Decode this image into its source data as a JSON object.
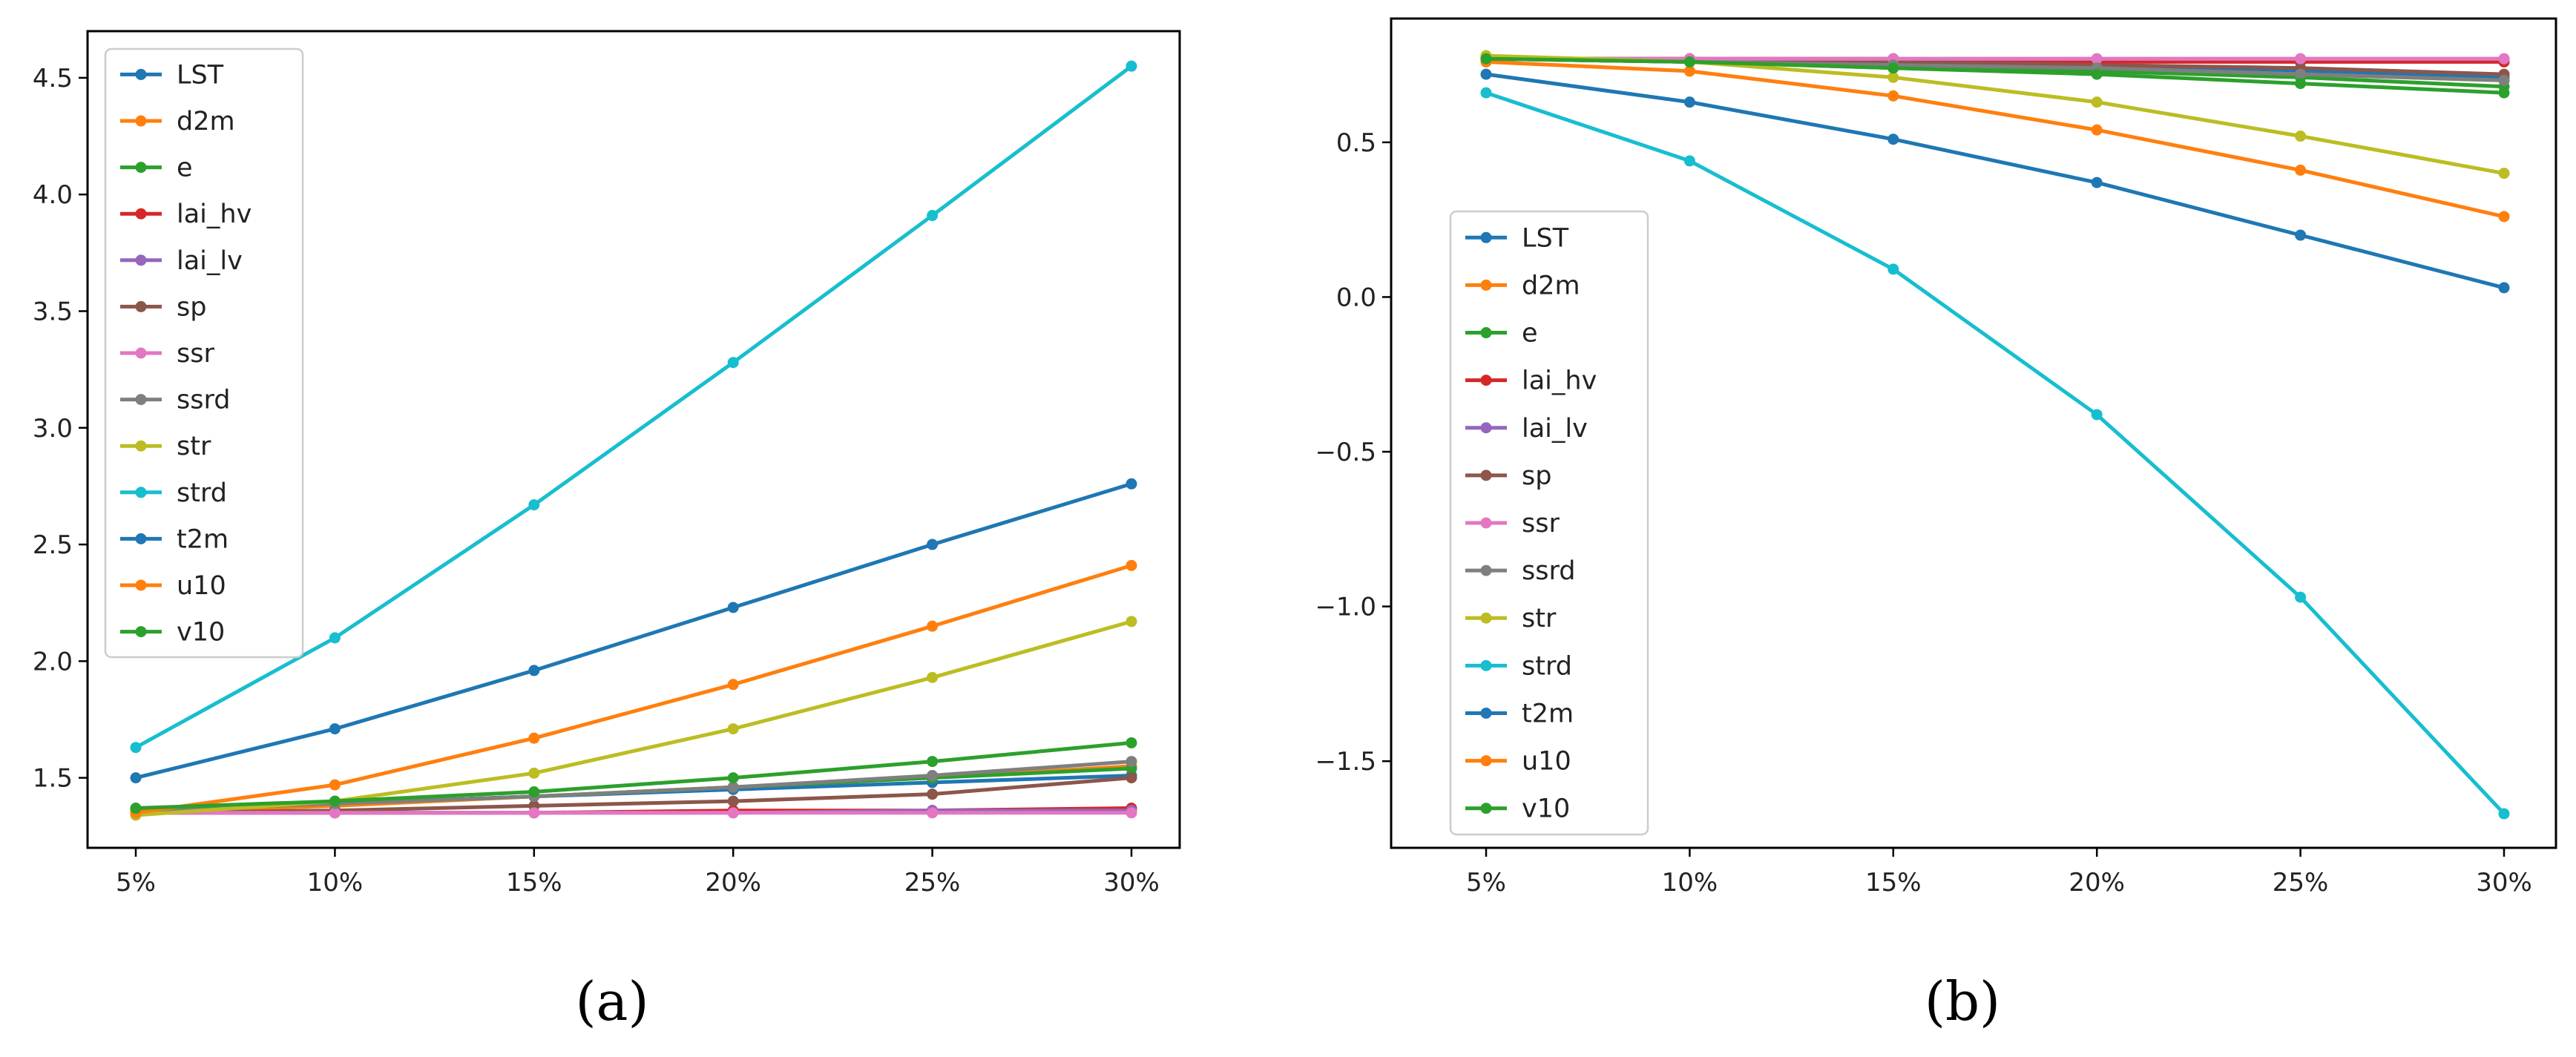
{
  "chart_data": [
    {
      "type": "line",
      "panel_label": "(a)",
      "title": "",
      "xlabel": "",
      "ylabel": "",
      "categories": [
        "5%",
        "10%",
        "15%",
        "20%",
        "25%",
        "30%"
      ],
      "ylim": [
        1.2,
        4.7
      ],
      "yticks": [
        1.5,
        2.0,
        2.5,
        3.0,
        3.5,
        4.0,
        4.5
      ],
      "ytick_labels": [
        "1.5",
        "2.0",
        "2.5",
        "3.0",
        "3.5",
        "4.0",
        "4.5"
      ],
      "legend_position": "upper-left",
      "series": [
        {
          "name": "LST",
          "color": "#1f77b4",
          "values": [
            1.36,
            1.39,
            1.42,
            1.45,
            1.48,
            1.51
          ]
        },
        {
          "name": "d2m",
          "color": "#ff7f0e",
          "values": [
            1.35,
            1.38,
            1.42,
            1.46,
            1.5,
            1.55
          ]
        },
        {
          "name": "e",
          "color": "#2ca02c",
          "values": [
            1.36,
            1.39,
            1.42,
            1.46,
            1.5,
            1.54
          ]
        },
        {
          "name": "lai_hv",
          "color": "#d62728",
          "values": [
            1.35,
            1.35,
            1.35,
            1.36,
            1.36,
            1.37
          ]
        },
        {
          "name": "lai_lv",
          "color": "#9467bd",
          "values": [
            1.35,
            1.35,
            1.35,
            1.35,
            1.36,
            1.36
          ]
        },
        {
          "name": "sp",
          "color": "#8c564b",
          "values": [
            1.35,
            1.36,
            1.38,
            1.4,
            1.43,
            1.5
          ]
        },
        {
          "name": "ssr",
          "color": "#e377c2",
          "values": [
            1.35,
            1.35,
            1.35,
            1.35,
            1.35,
            1.35
          ]
        },
        {
          "name": "ssrd",
          "color": "#7f7f7f",
          "values": [
            1.36,
            1.39,
            1.42,
            1.46,
            1.51,
            1.57
          ]
        },
        {
          "name": "str",
          "color": "#bcbd22",
          "values": [
            1.34,
            1.4,
            1.52,
            1.71,
            1.93,
            2.17
          ]
        },
        {
          "name": "strd",
          "color": "#17becf",
          "values": [
            1.63,
            2.1,
            2.67,
            3.28,
            3.91,
            4.55
          ]
        },
        {
          "name": "t2m",
          "color": "#1f77b4",
          "values": [
            1.5,
            1.71,
            1.96,
            2.23,
            2.5,
            2.76
          ]
        },
        {
          "name": "u10",
          "color": "#ff7f0e",
          "values": [
            1.35,
            1.47,
            1.67,
            1.9,
            2.15,
            2.41
          ]
        },
        {
          "name": "v10",
          "color": "#2ca02c",
          "values": [
            1.37,
            1.4,
            1.44,
            1.5,
            1.57,
            1.65
          ]
        }
      ]
    },
    {
      "type": "line",
      "panel_label": "(b)",
      "title": "",
      "xlabel": "",
      "ylabel": "",
      "categories": [
        "5%",
        "10%",
        "15%",
        "20%",
        "25%",
        "30%"
      ],
      "ylim": [
        -1.78,
        0.9
      ],
      "yticks": [
        -1.5,
        -1.0,
        -0.5,
        0.0,
        0.5
      ],
      "ytick_labels": [
        "−1.5",
        "−1.0",
        "−0.5",
        "0.0",
        "0.5"
      ],
      "legend_position": "center-left",
      "series": [
        {
          "name": "LST",
          "color": "#1f77b4",
          "values": [
            0.77,
            0.76,
            0.75,
            0.74,
            0.73,
            0.71
          ]
        },
        {
          "name": "d2m",
          "color": "#ff7f0e",
          "values": [
            0.77,
            0.76,
            0.75,
            0.74,
            0.72,
            0.7
          ]
        },
        {
          "name": "e",
          "color": "#2ca02c",
          "values": [
            0.77,
            0.76,
            0.74,
            0.73,
            0.71,
            0.68
          ]
        },
        {
          "name": "lai_hv",
          "color": "#d62728",
          "values": [
            0.77,
            0.77,
            0.77,
            0.76,
            0.76,
            0.76
          ]
        },
        {
          "name": "lai_lv",
          "color": "#9467bd",
          "values": [
            0.77,
            0.77,
            0.77,
            0.77,
            0.77,
            0.77
          ]
        },
        {
          "name": "sp",
          "color": "#8c564b",
          "values": [
            0.77,
            0.77,
            0.76,
            0.75,
            0.74,
            0.72
          ]
        },
        {
          "name": "ssr",
          "color": "#e377c2",
          "values": [
            0.77,
            0.77,
            0.77,
            0.77,
            0.77,
            0.77
          ]
        },
        {
          "name": "ssrd",
          "color": "#7f7f7f",
          "values": [
            0.77,
            0.76,
            0.75,
            0.74,
            0.72,
            0.7
          ]
        },
        {
          "name": "str",
          "color": "#bcbd22",
          "values": [
            0.78,
            0.76,
            0.71,
            0.63,
            0.52,
            0.4
          ]
        },
        {
          "name": "strd",
          "color": "#17becf",
          "values": [
            0.66,
            0.44,
            0.09,
            -0.38,
            -0.97,
            -1.67
          ]
        },
        {
          "name": "t2m",
          "color": "#1f77b4",
          "values": [
            0.72,
            0.63,
            0.51,
            0.37,
            0.2,
            0.03
          ]
        },
        {
          "name": "u10",
          "color": "#ff7f0e",
          "values": [
            0.76,
            0.73,
            0.65,
            0.54,
            0.41,
            0.26
          ]
        },
        {
          "name": "v10",
          "color": "#2ca02c",
          "values": [
            0.77,
            0.76,
            0.74,
            0.72,
            0.69,
            0.66
          ]
        }
      ]
    }
  ]
}
